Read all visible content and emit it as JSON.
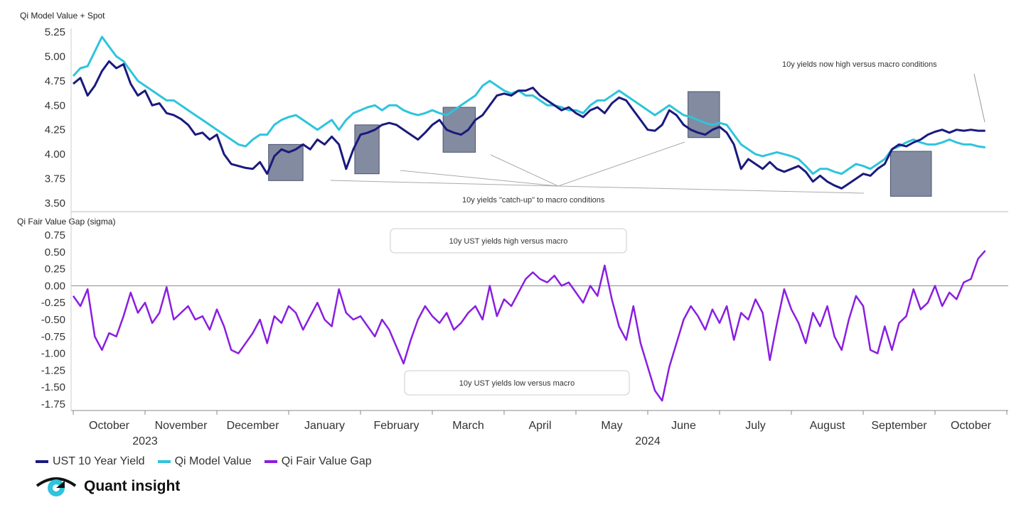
{
  "colors": {
    "yield": "#1a1a7e",
    "model": "#2ec4dc",
    "gap": "#8a1ee0",
    "box": "#5a6480",
    "axis": "#999999"
  },
  "top_title": "Qi Model Value + Spot",
  "bottom_title": "Qi Fair Value Gap (sigma)",
  "months": [
    "October",
    "November",
    "December",
    "January",
    "February",
    "March",
    "April",
    "May",
    "June",
    "July",
    "August",
    "September",
    "October"
  ],
  "years": [
    "2023",
    "2024"
  ],
  "annotations": {
    "top_high": "10y yields now high versus macro conditions",
    "catch_up": "10y yields \"catch-up\" to macro conditions",
    "gap_high": "10y UST yields high versus macro",
    "gap_low": "10y UST yields low versus macro"
  },
  "legend": [
    {
      "label": "UST 10 Year Yield",
      "color": "#1a1a7e"
    },
    {
      "label": "Qi Model Value",
      "color": "#2ec4dc"
    },
    {
      "label": "Qi Fair Value Gap",
      "color": "#8a1ee0"
    }
  ],
  "logo_text": "Quant insight",
  "chart_data": [
    {
      "type": "line",
      "title": "Qi Model Value + Spot",
      "ylim": [
        3.5,
        5.3
      ],
      "yticks": [
        "5.25",
        "5.00",
        "4.75",
        "4.50",
        "4.25",
        "4.00",
        "3.75",
        "3.50"
      ],
      "x_unit": "months since start of October 2023",
      "series": [
        {
          "name": "UST 10 Year Yield",
          "x": [
            0,
            0.1,
            0.2,
            0.3,
            0.4,
            0.5,
            0.6,
            0.7,
            0.8,
            0.9,
            1,
            1.1,
            1.2,
            1.3,
            1.4,
            1.5,
            1.6,
            1.7,
            1.8,
            1.9,
            2,
            2.1,
            2.2,
            2.3,
            2.4,
            2.5,
            2.6,
            2.7,
            2.8,
            2.9,
            3,
            3.1,
            3.2,
            3.3,
            3.4,
            3.5,
            3.6,
            3.7,
            3.8,
            3.9,
            4,
            4.1,
            4.2,
            4.3,
            4.4,
            4.5,
            4.6,
            4.7,
            4.8,
            4.9,
            5,
            5.1,
            5.2,
            5.3,
            5.4,
            5.5,
            5.6,
            5.7,
            5.8,
            5.9,
            6,
            6.1,
            6.2,
            6.3,
            6.4,
            6.5,
            6.6,
            6.7,
            6.8,
            6.9,
            7,
            7.1,
            7.2,
            7.3,
            7.4,
            7.5,
            7.6,
            7.7,
            7.8,
            7.9,
            8,
            8.1,
            8.2,
            8.3,
            8.4,
            8.5,
            8.6,
            8.7,
            8.8,
            8.9,
            9,
            9.1,
            9.2,
            9.3,
            9.4,
            9.5,
            9.6,
            9.7,
            9.8,
            9.9,
            10,
            10.1,
            10.2,
            10.3,
            10.4,
            10.5,
            10.6,
            10.7,
            10.8,
            10.9,
            11,
            11.1,
            11.2,
            11.3,
            11.4,
            11.5,
            11.6,
            11.7,
            11.8,
            11.9,
            12,
            12.1,
            12.2,
            12.3,
            12.4,
            12.5,
            12.6,
            12.7
          ],
          "y": [
            4.72,
            4.78,
            4.6,
            4.7,
            4.85,
            4.95,
            4.88,
            4.92,
            4.72,
            4.6,
            4.65,
            4.5,
            4.52,
            4.42,
            4.4,
            4.36,
            4.3,
            4.2,
            4.22,
            4.15,
            4.2,
            4.0,
            3.9,
            3.88,
            3.86,
            3.85,
            3.92,
            3.8,
            3.98,
            4.05,
            4.02,
            4.05,
            4.1,
            4.05,
            4.15,
            4.1,
            4.18,
            4.1,
            3.85,
            4.05,
            4.2,
            4.22,
            4.25,
            4.3,
            4.32,
            4.3,
            4.25,
            4.2,
            4.15,
            4.22,
            4.3,
            4.35,
            4.25,
            4.22,
            4.2,
            4.25,
            4.35,
            4.4,
            4.5,
            4.6,
            4.62,
            4.6,
            4.65,
            4.65,
            4.68,
            4.6,
            4.55,
            4.5,
            4.45,
            4.48,
            4.42,
            4.38,
            4.45,
            4.48,
            4.42,
            4.52,
            4.58,
            4.55,
            4.45,
            4.35,
            4.25,
            4.24,
            4.3,
            4.45,
            4.4,
            4.3,
            4.25,
            4.22,
            4.2,
            4.25,
            4.28,
            4.22,
            4.1,
            3.85,
            3.95,
            3.9,
            3.85,
            3.92,
            3.85,
            3.82,
            3.85,
            3.88,
            3.82,
            3.72,
            3.78,
            3.72,
            3.68,
            3.65,
            3.7,
            3.75,
            3.8,
            3.78,
            3.85,
            3.9,
            4.05,
            4.1,
            4.08,
            4.12,
            4.15,
            4.2,
            4.23,
            4.25,
            4.22,
            4.25,
            4.24,
            4.25,
            4.24,
            4.24
          ]
        },
        {
          "name": "Qi Model Value",
          "x": [
            0,
            0.1,
            0.2,
            0.3,
            0.4,
            0.5,
            0.6,
            0.7,
            0.8,
            0.9,
            1,
            1.1,
            1.2,
            1.3,
            1.4,
            1.5,
            1.6,
            1.7,
            1.8,
            1.9,
            2,
            2.1,
            2.2,
            2.3,
            2.4,
            2.5,
            2.6,
            2.7,
            2.8,
            2.9,
            3,
            3.1,
            3.2,
            3.3,
            3.4,
            3.5,
            3.6,
            3.7,
            3.8,
            3.9,
            4,
            4.1,
            4.2,
            4.3,
            4.4,
            4.5,
            4.6,
            4.7,
            4.8,
            4.9,
            5,
            5.1,
            5.2,
            5.3,
            5.4,
            5.5,
            5.6,
            5.7,
            5.8,
            5.9,
            6,
            6.1,
            6.2,
            6.3,
            6.4,
            6.5,
            6.6,
            6.7,
            6.8,
            6.9,
            7,
            7.1,
            7.2,
            7.3,
            7.4,
            7.5,
            7.6,
            7.7,
            7.8,
            7.9,
            8,
            8.1,
            8.2,
            8.3,
            8.4,
            8.5,
            8.6,
            8.7,
            8.8,
            8.9,
            9,
            9.1,
            9.2,
            9.3,
            9.4,
            9.5,
            9.6,
            9.7,
            9.8,
            9.9,
            10,
            10.1,
            10.2,
            10.3,
            10.4,
            10.5,
            10.6,
            10.7,
            10.8,
            10.9,
            11,
            11.1,
            11.2,
            11.3,
            11.4,
            11.5,
            11.6,
            11.7,
            11.8,
            11.9,
            12,
            12.1,
            12.2,
            12.3,
            12.4,
            12.5,
            12.6,
            12.7
          ],
          "y": [
            4.8,
            4.88,
            4.9,
            5.05,
            5.2,
            5.1,
            5.0,
            4.95,
            4.85,
            4.75,
            4.7,
            4.65,
            4.6,
            4.55,
            4.55,
            4.5,
            4.45,
            4.4,
            4.35,
            4.3,
            4.25,
            4.2,
            4.15,
            4.1,
            4.08,
            4.15,
            4.2,
            4.2,
            4.3,
            4.35,
            4.38,
            4.4,
            4.35,
            4.3,
            4.25,
            4.3,
            4.35,
            4.25,
            4.35,
            4.42,
            4.45,
            4.48,
            4.5,
            4.45,
            4.5,
            4.5,
            4.45,
            4.42,
            4.4,
            4.42,
            4.45,
            4.42,
            4.4,
            4.45,
            4.5,
            4.55,
            4.6,
            4.7,
            4.75,
            4.7,
            4.65,
            4.62,
            4.65,
            4.6,
            4.6,
            4.55,
            4.5,
            4.5,
            4.48,
            4.45,
            4.45,
            4.42,
            4.5,
            4.55,
            4.55,
            4.6,
            4.65,
            4.6,
            4.55,
            4.5,
            4.45,
            4.4,
            4.45,
            4.5,
            4.45,
            4.4,
            4.38,
            4.35,
            4.32,
            4.3,
            4.32,
            4.3,
            4.2,
            4.1,
            4.05,
            4.0,
            3.98,
            4.0,
            4.02,
            4.0,
            3.98,
            3.95,
            3.88,
            3.8,
            3.85,
            3.85,
            3.82,
            3.8,
            3.85,
            3.9,
            3.88,
            3.85,
            3.9,
            3.95,
            4.05,
            4.08,
            4.12,
            4.15,
            4.12,
            4.1,
            4.1,
            4.12,
            4.15,
            4.12,
            4.1,
            4.1,
            4.08,
            4.07
          ]
        }
      ]
    },
    {
      "type": "line",
      "title": "Qi Fair Value Gap (sigma)",
      "ylim": [
        -1.8,
        0.8
      ],
      "yticks": [
        "0.75",
        "0.50",
        "0.25",
        "0.00",
        "-0.25",
        "-0.50",
        "-0.75",
        "-1.00",
        "-1.25",
        "-1.50",
        "-1.75"
      ],
      "x_unit": "months since start of October 2023",
      "series": [
        {
          "name": "Qi Fair Value Gap",
          "x": [
            0,
            0.1,
            0.2,
            0.3,
            0.4,
            0.5,
            0.6,
            0.7,
            0.8,
            0.9,
            1,
            1.1,
            1.2,
            1.3,
            1.4,
            1.5,
            1.6,
            1.7,
            1.8,
            1.9,
            2,
            2.1,
            2.2,
            2.3,
            2.4,
            2.5,
            2.6,
            2.7,
            2.8,
            2.9,
            3,
            3.1,
            3.2,
            3.3,
            3.4,
            3.5,
            3.6,
            3.7,
            3.8,
            3.9,
            4,
            4.1,
            4.2,
            4.3,
            4.4,
            4.5,
            4.6,
            4.7,
            4.8,
            4.9,
            5,
            5.1,
            5.2,
            5.3,
            5.4,
            5.5,
            5.6,
            5.7,
            5.8,
            5.9,
            6,
            6.1,
            6.2,
            6.3,
            6.4,
            6.5,
            6.6,
            6.7,
            6.8,
            6.9,
            7,
            7.1,
            7.2,
            7.3,
            7.4,
            7.5,
            7.6,
            7.7,
            7.8,
            7.9,
            8,
            8.1,
            8.2,
            8.3,
            8.4,
            8.5,
            8.6,
            8.7,
            8.8,
            8.9,
            9,
            9.1,
            9.2,
            9.3,
            9.4,
            9.5,
            9.6,
            9.7,
            9.8,
            9.9,
            10,
            10.1,
            10.2,
            10.3,
            10.4,
            10.5,
            10.6,
            10.7,
            10.8,
            10.9,
            11,
            11.1,
            11.2,
            11.3,
            11.4,
            11.5,
            11.6,
            11.7,
            11.8,
            11.9,
            12,
            12.1,
            12.2,
            12.3,
            12.4,
            12.5,
            12.6,
            12.7
          ],
          "y": [
            -0.15,
            -0.3,
            -0.05,
            -0.75,
            -0.95,
            -0.7,
            -0.75,
            -0.45,
            -0.1,
            -0.4,
            -0.25,
            -0.55,
            -0.4,
            -0.02,
            -0.5,
            -0.4,
            -0.3,
            -0.5,
            -0.45,
            -0.65,
            -0.35,
            -0.6,
            -0.95,
            -1.0,
            -0.85,
            -0.7,
            -0.5,
            -0.85,
            -0.45,
            -0.55,
            -0.3,
            -0.4,
            -0.65,
            -0.45,
            -0.25,
            -0.5,
            -0.6,
            -0.05,
            -0.4,
            -0.5,
            -0.45,
            -0.6,
            -0.75,
            -0.5,
            -0.65,
            -0.9,
            -1.15,
            -0.8,
            -0.5,
            -0.3,
            -0.45,
            -0.55,
            -0.4,
            -0.65,
            -0.55,
            -0.4,
            -0.3,
            -0.5,
            0.0,
            -0.45,
            -0.2,
            -0.3,
            -0.1,
            0.1,
            0.2,
            0.1,
            0.05,
            0.15,
            0.0,
            0.05,
            -0.1,
            -0.25,
            0.0,
            -0.15,
            0.3,
            -0.2,
            -0.6,
            -0.8,
            -0.3,
            -0.85,
            -1.2,
            -1.55,
            -1.7,
            -1.2,
            -0.85,
            -0.5,
            -0.3,
            -0.45,
            -0.65,
            -0.35,
            -0.55,
            -0.3,
            -0.8,
            -0.4,
            -0.5,
            -0.2,
            -0.4,
            -1.1,
            -0.55,
            -0.05,
            -0.35,
            -0.55,
            -0.85,
            -0.4,
            -0.6,
            -0.3,
            -0.75,
            -0.95,
            -0.5,
            -0.15,
            -0.3,
            -0.95,
            -1.0,
            -0.6,
            -0.95,
            -0.55,
            -0.45,
            -0.05,
            -0.35,
            -0.25,
            0.0,
            -0.3,
            -0.1,
            -0.2,
            0.05,
            0.1,
            0.4,
            0.52
          ]
        }
      ]
    }
  ]
}
